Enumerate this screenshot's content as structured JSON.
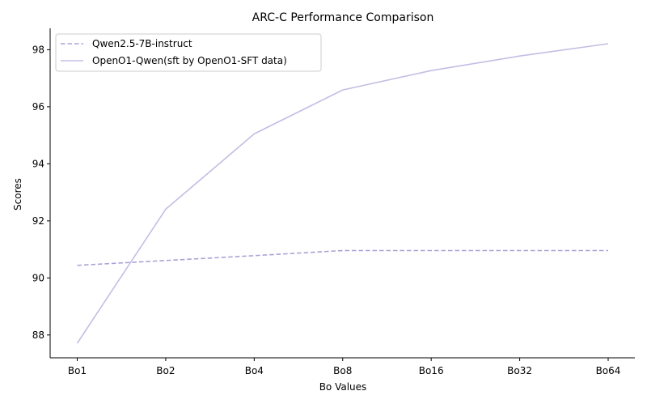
{
  "chart_data": {
    "type": "line",
    "title": "ARC-C Performance Comparison",
    "xlabel": "Bo Values",
    "ylabel": "Scores",
    "categories": [
      "Bo1",
      "Bo2",
      "Bo4",
      "Bo8",
      "Bo16",
      "Bo32",
      "Bo64"
    ],
    "ylim": [
      87.2,
      98.75
    ],
    "yticks": [
      88,
      90,
      92,
      94,
      96,
      98
    ],
    "grid": false,
    "legend_position": "top-left",
    "series": [
      {
        "name": "Qwen2.5-7B-instruct",
        "values": [
          90.44,
          90.61,
          90.78,
          90.96,
          90.96,
          90.96,
          90.96
        ],
        "color": "#a9a3d6",
        "line_style": "dashed"
      },
      {
        "name": "OpenO1-Qwen(sft by OpenO1-SFT data)",
        "values": [
          87.71,
          92.41,
          95.05,
          96.59,
          97.27,
          97.78,
          98.21
        ],
        "color": "#c5bde3",
        "line_style": "solid"
      }
    ]
  }
}
